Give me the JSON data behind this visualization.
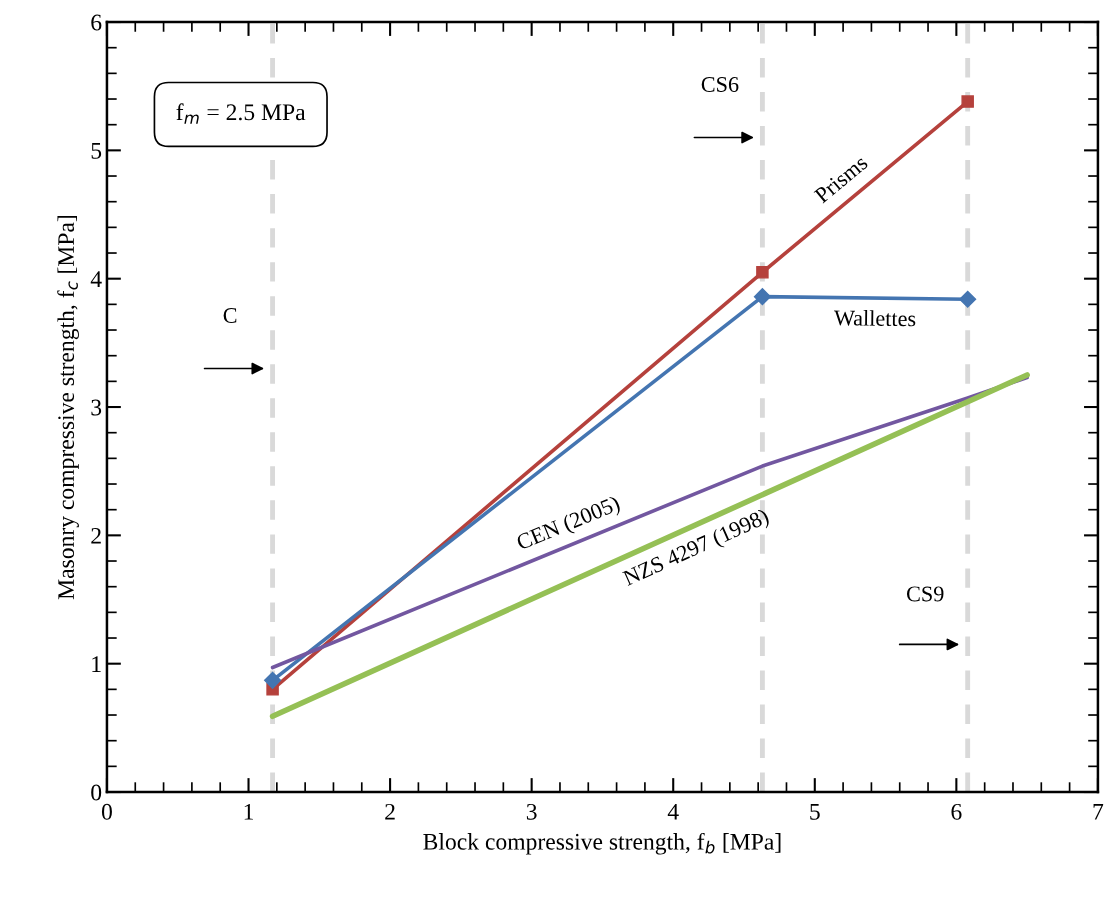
{
  "chart_data": {
    "type": "line",
    "xlabel": "Block compressive strength, f$_{b}$ [MPa]",
    "ylabel": "Masonry compressive strength, f$_{c}$ [MPa]",
    "xlim": [
      0,
      7
    ],
    "xticks": [
      0,
      1,
      2,
      3,
      4,
      5,
      6,
      7
    ],
    "ylim": [
      0,
      6
    ],
    "yticks": [
      0,
      1,
      2,
      3,
      4,
      5,
      6
    ],
    "grid": false,
    "legend": false,
    "series": [
      {
        "name": "Prisms",
        "color": "#b5413c",
        "marker": "square",
        "x": [
          1.17,
          4.63,
          6.08
        ],
        "values": [
          0.8,
          4.05,
          5.38
        ]
      },
      {
        "name": "Wallettes",
        "color": "#4475b1",
        "marker": "diamond",
        "x": [
          1.17,
          4.63,
          6.08
        ],
        "values": [
          0.87,
          3.86,
          3.84
        ]
      },
      {
        "name": "CEN (2005)",
        "color": "#7257a0",
        "marker": "none",
        "x": [
          1.17,
          4.63,
          6.08,
          6.5
        ],
        "values": [
          0.97,
          2.54,
          3.07,
          3.23
        ]
      },
      {
        "name": "NZS 4297 (1998)",
        "color": "#95c055",
        "marker": "none",
        "x": [
          1.17,
          6.5
        ],
        "values": [
          0.59,
          3.25
        ]
      }
    ],
    "ref_lines": [
      {
        "axis": "x",
        "value": 1.17,
        "label": "C",
        "color": "#d9d9d9",
        "line_style": "dashed"
      },
      {
        "axis": "x",
        "value": 4.63,
        "label": "CS6",
        "color": "#d9d9d9",
        "line_style": "dashed"
      },
      {
        "axis": "x",
        "value": 6.08,
        "label": "CS9",
        "color": "#d9d9d9",
        "line_style": "dashed"
      }
    ],
    "annotations": [
      "f$_{m}$ = 2.5 MPa"
    ]
  }
}
